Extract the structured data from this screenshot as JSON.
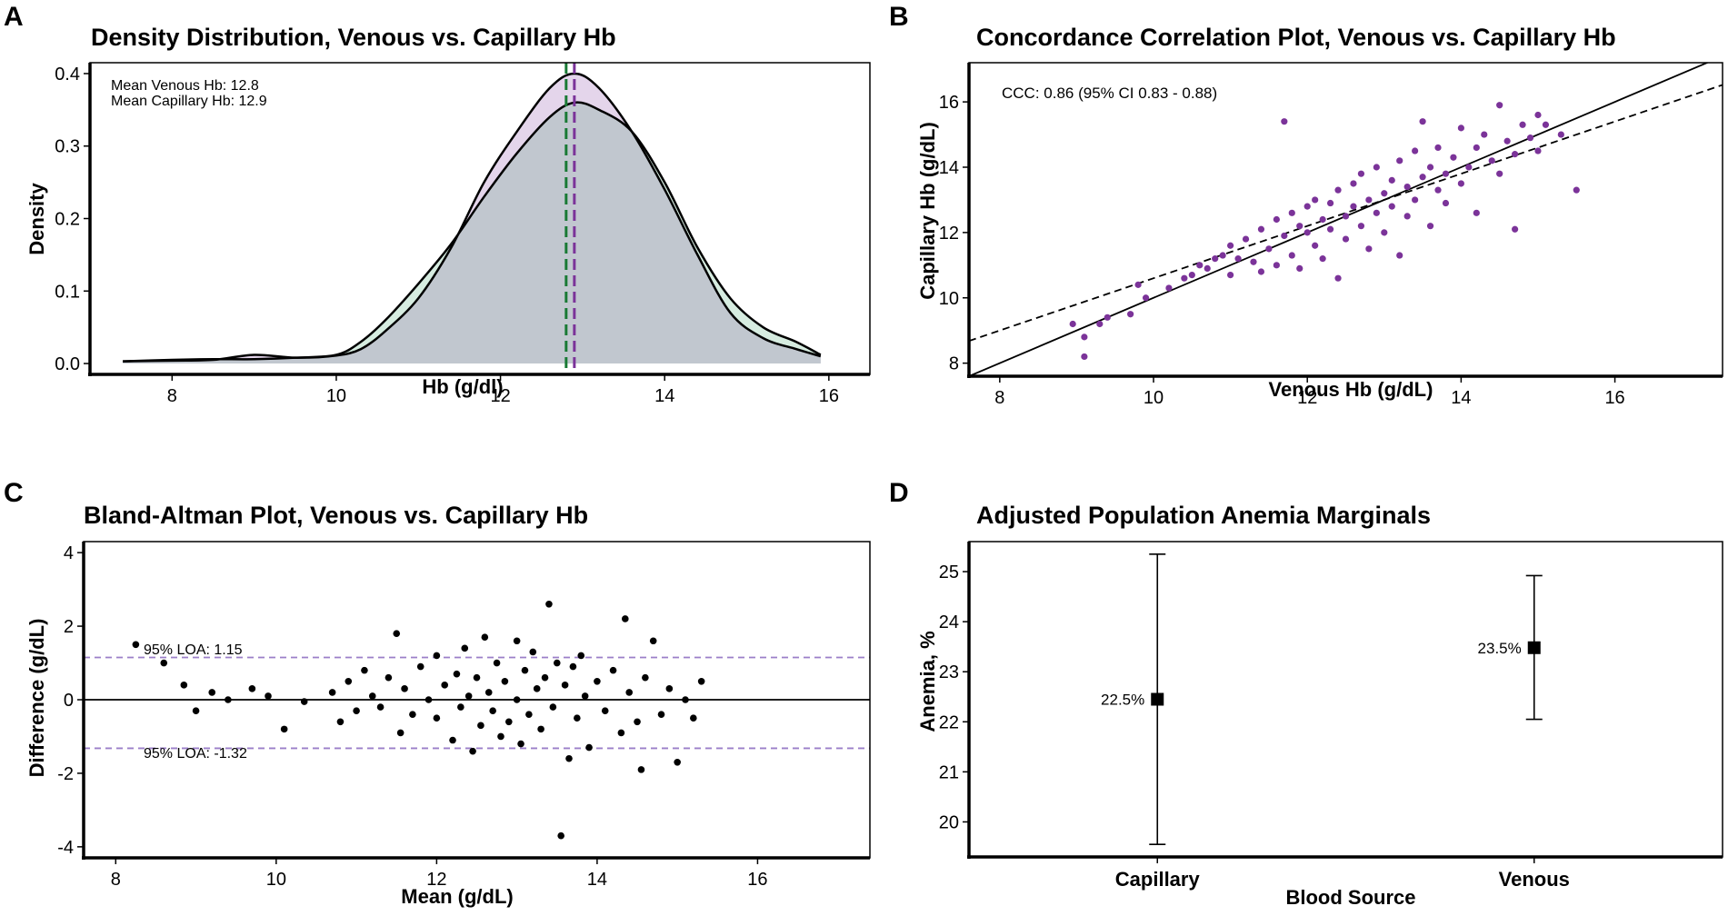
{
  "figure_labels": [
    "A",
    "B",
    "C",
    "D"
  ],
  "colors": {
    "venous": "#1a7a35",
    "capillary": "#7b3399",
    "venous_fill": "#d6ece0",
    "capillary_fill": "#e4d5eb",
    "overlap_fill": "#c1c7cf",
    "points": "#7b3399",
    "loa": "#9b7fc9"
  },
  "chart_data": [
    {
      "panel": "A",
      "type": "area",
      "title": "Density Distribution, Venous vs. Capillary Hb",
      "xlabel": "Hb (g/dl)",
      "ylabel": "Density",
      "xlim": [
        7.0,
        16.5
      ],
      "ylim": [
        -0.015,
        0.415
      ],
      "xticks": [
        8,
        10,
        12,
        14,
        16
      ],
      "yticks": [
        0.0,
        0.1,
        0.2,
        0.3,
        0.4
      ],
      "yticklabels": [
        "0.0",
        "0.1",
        "0.2",
        "0.3",
        "0.4"
      ],
      "annotations": [
        "Mean Venous Hb: 12.8",
        "Mean Capillary Hb: 12.9"
      ],
      "vlines": [
        {
          "name": "Mean Venous Hb",
          "x": 12.8
        },
        {
          "name": "Mean Capillary Hb",
          "x": 12.9
        }
      ],
      "series": [
        {
          "name": "Venous",
          "x": [
            7.4,
            8.0,
            8.5,
            9.0,
            9.5,
            10.0,
            10.3,
            10.6,
            11.0,
            11.4,
            11.8,
            12.2,
            12.6,
            12.9,
            13.2,
            13.6,
            14.0,
            14.4,
            14.8,
            15.2,
            15.6,
            15.9
          ],
          "y": [
            0.003,
            0.005,
            0.006,
            0.006,
            0.008,
            0.012,
            0.03,
            0.06,
            0.11,
            0.165,
            0.23,
            0.29,
            0.34,
            0.36,
            0.35,
            0.32,
            0.25,
            0.16,
            0.09,
            0.05,
            0.03,
            0.012
          ]
        },
        {
          "name": "Capillary",
          "x": [
            7.4,
            8.0,
            8.5,
            9.0,
            9.5,
            10.0,
            10.3,
            10.6,
            11.0,
            11.4,
            11.8,
            12.2,
            12.6,
            12.9,
            13.2,
            13.6,
            14.0,
            14.4,
            14.8,
            15.2,
            15.6,
            15.9
          ],
          "y": [
            0.003,
            0.004,
            0.005,
            0.012,
            0.008,
            0.011,
            0.02,
            0.045,
            0.09,
            0.16,
            0.25,
            0.32,
            0.38,
            0.4,
            0.38,
            0.32,
            0.24,
            0.15,
            0.07,
            0.035,
            0.02,
            0.01
          ]
        }
      ]
    },
    {
      "panel": "B",
      "type": "scatter",
      "title": "Concordance Correlation Plot, Venous vs. Capillary Hb",
      "xlabel": "Venous Hb (g/dL)",
      "ylabel": "Capillary Hb (g/dL)",
      "xlim": [
        7.6,
        17.4
      ],
      "ylim": [
        7.6,
        17.2
      ],
      "xticks": [
        8,
        10,
        12,
        14,
        16
      ],
      "yticks": [
        8,
        10,
        12,
        14,
        16
      ],
      "annotation": "CCC: 0.86 (95% CI 0.83 - 0.88)",
      "identity_line": {
        "slope": 1,
        "intercept": 0
      },
      "fit_line": {
        "slope": 0.8,
        "intercept": 2.6
      },
      "points": [
        [
          8.95,
          9.2
        ],
        [
          9.1,
          8.8
        ],
        [
          9.1,
          8.2
        ],
        [
          9.3,
          9.2
        ],
        [
          9.4,
          9.4
        ],
        [
          9.7,
          9.5
        ],
        [
          9.8,
          10.4
        ],
        [
          9.9,
          10.0
        ],
        [
          10.2,
          10.3
        ],
        [
          10.4,
          10.6
        ],
        [
          10.5,
          10.7
        ],
        [
          10.6,
          11.0
        ],
        [
          10.7,
          10.9
        ],
        [
          10.8,
          11.2
        ],
        [
          10.9,
          11.3
        ],
        [
          11.0,
          10.7
        ],
        [
          11.0,
          11.6
        ],
        [
          11.1,
          11.2
        ],
        [
          11.2,
          11.8
        ],
        [
          11.3,
          11.1
        ],
        [
          11.4,
          10.8
        ],
        [
          11.4,
          12.1
        ],
        [
          11.5,
          11.5
        ],
        [
          11.6,
          12.4
        ],
        [
          11.6,
          11.0
        ],
        [
          11.7,
          15.4
        ],
        [
          11.7,
          11.9
        ],
        [
          11.8,
          12.6
        ],
        [
          11.8,
          11.3
        ],
        [
          11.9,
          12.2
        ],
        [
          11.9,
          10.9
        ],
        [
          12.0,
          12.0
        ],
        [
          12.0,
          12.8
        ],
        [
          12.1,
          11.6
        ],
        [
          12.1,
          13.0
        ],
        [
          12.2,
          12.4
        ],
        [
          12.2,
          11.2
        ],
        [
          12.3,
          12.9
        ],
        [
          12.3,
          12.1
        ],
        [
          12.4,
          10.6
        ],
        [
          12.4,
          13.3
        ],
        [
          12.5,
          12.5
        ],
        [
          12.5,
          11.8
        ],
        [
          12.6,
          13.5
        ],
        [
          12.6,
          12.8
        ],
        [
          12.7,
          12.2
        ],
        [
          12.7,
          13.8
        ],
        [
          12.8,
          13.0
        ],
        [
          12.8,
          11.5
        ],
        [
          12.9,
          12.6
        ],
        [
          12.9,
          14.0
        ],
        [
          13.0,
          13.2
        ],
        [
          13.0,
          12.0
        ],
        [
          13.1,
          13.6
        ],
        [
          13.1,
          12.8
        ],
        [
          13.2,
          14.2
        ],
        [
          13.2,
          11.3
        ],
        [
          13.3,
          13.4
        ],
        [
          13.3,
          12.5
        ],
        [
          13.4,
          14.5
        ],
        [
          13.4,
          13.0
        ],
        [
          13.5,
          15.4
        ],
        [
          13.5,
          13.7
        ],
        [
          13.6,
          12.2
        ],
        [
          13.6,
          14.0
        ],
        [
          13.7,
          13.3
        ],
        [
          13.7,
          14.6
        ],
        [
          13.8,
          13.8
        ],
        [
          13.8,
          12.9
        ],
        [
          13.9,
          14.3
        ],
        [
          14.0,
          15.2
        ],
        [
          14.0,
          13.5
        ],
        [
          14.1,
          14.0
        ],
        [
          14.2,
          12.6
        ],
        [
          14.2,
          14.6
        ],
        [
          14.3,
          15.0
        ],
        [
          14.4,
          14.2
        ],
        [
          14.5,
          15.9
        ],
        [
          14.5,
          13.8
        ],
        [
          14.6,
          14.8
        ],
        [
          14.7,
          14.4
        ],
        [
          14.8,
          15.3
        ],
        [
          14.9,
          14.9
        ],
        [
          15.0,
          15.6
        ],
        [
          15.0,
          14.5
        ],
        [
          15.1,
          15.3
        ],
        [
          14.7,
          12.1
        ],
        [
          15.5,
          13.3
        ],
        [
          15.3,
          15.0
        ]
      ]
    },
    {
      "panel": "C",
      "type": "scatter",
      "title": "Bland-Altman Plot, Venous vs. Capillary Hb",
      "xlabel": "Mean (g/dL)",
      "ylabel": "Difference (g/dL)",
      "xlim": [
        7.6,
        17.4
      ],
      "ylim": [
        -4.3,
        4.3
      ],
      "xticks": [
        8,
        10,
        12,
        14,
        16
      ],
      "yticks": [
        -4,
        -2,
        0,
        2,
        4
      ],
      "loa_upper": {
        "label": "95% LOA: 1.15",
        "value": 1.15
      },
      "loa_lower": {
        "label": "95% LOA: -1.32",
        "value": -1.32
      },
      "points": [
        [
          8.25,
          1.5
        ],
        [
          8.6,
          1.0
        ],
        [
          8.85,
          0.4
        ],
        [
          9.0,
          -0.3
        ],
        [
          9.2,
          0.2
        ],
        [
          9.4,
          0.0
        ],
        [
          9.7,
          0.3
        ],
        [
          9.9,
          0.1
        ],
        [
          10.1,
          -0.8
        ],
        [
          10.35,
          -0.05
        ],
        [
          10.7,
          0.2
        ],
        [
          10.8,
          -0.6
        ],
        [
          10.9,
          0.5
        ],
        [
          11.0,
          -0.3
        ],
        [
          11.1,
          0.8
        ],
        [
          11.2,
          0.1
        ],
        [
          11.3,
          -0.2
        ],
        [
          11.4,
          0.6
        ],
        [
          11.5,
          1.8
        ],
        [
          11.55,
          -0.9
        ],
        [
          11.6,
          0.3
        ],
        [
          11.7,
          -0.4
        ],
        [
          11.8,
          0.9
        ],
        [
          11.9,
          0.0
        ],
        [
          12.0,
          1.2
        ],
        [
          12.0,
          -0.5
        ],
        [
          12.1,
          0.4
        ],
        [
          12.2,
          -1.1
        ],
        [
          12.25,
          0.7
        ],
        [
          12.3,
          -0.2
        ],
        [
          12.35,
          1.4
        ],
        [
          12.4,
          0.1
        ],
        [
          12.45,
          -1.4
        ],
        [
          12.5,
          0.6
        ],
        [
          12.55,
          -0.7
        ],
        [
          12.6,
          1.7
        ],
        [
          12.65,
          0.2
        ],
        [
          12.7,
          -0.3
        ],
        [
          12.75,
          1.0
        ],
        [
          12.8,
          -1.0
        ],
        [
          12.85,
          0.5
        ],
        [
          12.9,
          -0.6
        ],
        [
          13.0,
          1.6
        ],
        [
          13.0,
          0.0
        ],
        [
          13.05,
          -1.2
        ],
        [
          13.1,
          0.8
        ],
        [
          13.15,
          -0.4
        ],
        [
          13.2,
          1.3
        ],
        [
          13.25,
          0.3
        ],
        [
          13.3,
          -0.8
        ],
        [
          13.35,
          0.6
        ],
        [
          13.4,
          2.6
        ],
        [
          13.45,
          -0.2
        ],
        [
          13.5,
          1.0
        ],
        [
          13.55,
          -3.7
        ],
        [
          13.6,
          0.4
        ],
        [
          13.65,
          -1.6
        ],
        [
          13.7,
          0.9
        ],
        [
          13.75,
          -0.5
        ],
        [
          13.8,
          1.2
        ],
        [
          13.85,
          0.1
        ],
        [
          13.9,
          -1.3
        ],
        [
          14.0,
          0.5
        ],
        [
          14.1,
          -0.3
        ],
        [
          14.2,
          0.8
        ],
        [
          14.3,
          -0.9
        ],
        [
          14.35,
          2.2
        ],
        [
          14.4,
          0.2
        ],
        [
          14.5,
          -0.6
        ],
        [
          14.55,
          -1.9
        ],
        [
          14.6,
          0.6
        ],
        [
          14.7,
          1.6
        ],
        [
          14.8,
          -0.4
        ],
        [
          14.9,
          0.3
        ],
        [
          15.0,
          -1.7
        ],
        [
          15.1,
          0.0
        ],
        [
          15.2,
          -0.5
        ],
        [
          15.3,
          0.5
        ]
      ]
    },
    {
      "panel": "D",
      "type": "errorbar",
      "title": "Adjusted Population Anemia Marginals",
      "xlabel": "Blood Source",
      "ylabel": "Anemia, %",
      "categories": [
        "Capillary",
        "Venous"
      ],
      "ylim": [
        19.3,
        25.6
      ],
      "yticks": [
        20,
        21,
        22,
        23,
        24,
        25
      ],
      "values": [
        22.45,
        23.48
      ],
      "value_labels": [
        "22.5%",
        "23.5%"
      ],
      "ci_lower": [
        19.55,
        22.05
      ],
      "ci_upper": [
        25.35,
        24.92
      ]
    }
  ]
}
